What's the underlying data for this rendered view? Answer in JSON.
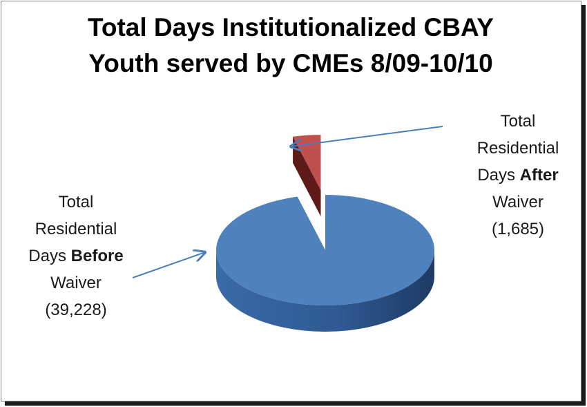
{
  "chart_data": {
    "type": "pie",
    "title_lines": [
      "Total Days Institutionalized CBAY",
      "Youth served by CMEs 8/09-10/10"
    ],
    "slices": [
      {
        "key": "before",
        "value": 39228,
        "value_label": "(39,228)",
        "label_lines": [
          "Total",
          "Residential"
        ],
        "label_prefix": "Days ",
        "label_bold": "Before",
        "label_suffix": "Waiver",
        "color": "#4f81bd",
        "exploded": false
      },
      {
        "key": "after",
        "value": 1685,
        "value_label": "(1,685)",
        "label_lines": [
          "Total",
          "Residential"
        ],
        "label_prefix": "Days ",
        "label_bold": "After",
        "label_suffix": "Waiver",
        "color": "#c0504d",
        "exploded": true
      }
    ],
    "style": "3d-exploded",
    "legend": "none"
  }
}
